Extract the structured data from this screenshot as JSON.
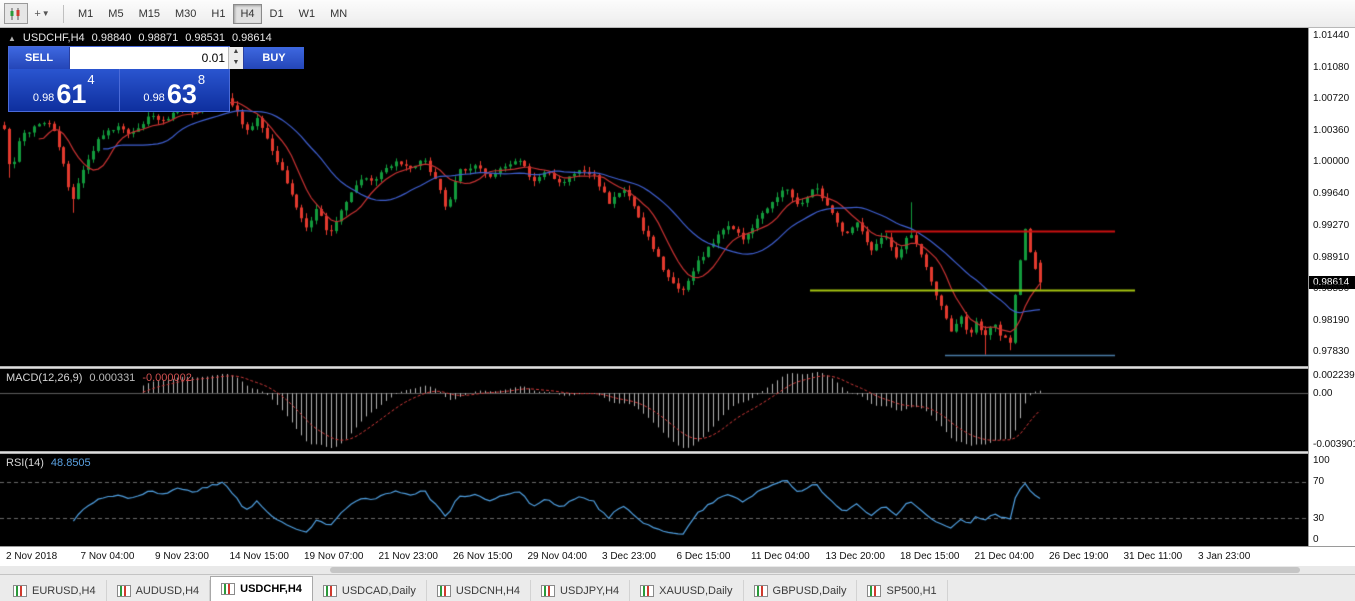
{
  "toolbar": {
    "timeframes": [
      {
        "label": "M1",
        "active": false
      },
      {
        "label": "M5",
        "active": false
      },
      {
        "label": "M15",
        "active": false
      },
      {
        "label": "M30",
        "active": false
      },
      {
        "label": "H1",
        "active": false
      },
      {
        "label": "H4",
        "active": true
      },
      {
        "label": "D1",
        "active": false
      },
      {
        "label": "W1",
        "active": false
      },
      {
        "label": "MN",
        "active": false
      }
    ]
  },
  "chart": {
    "header": {
      "symbol": "USDCHF,H4",
      "open": "0.98840",
      "high": "0.98871",
      "low": "0.98531",
      "close": "0.98614"
    },
    "trade_panel": {
      "sell_label": "SELL",
      "buy_label": "BUY",
      "volume": "0.01",
      "sell_price": {
        "base": "0.98",
        "big": "61",
        "pip": "4"
      },
      "buy_price": {
        "base": "0.98",
        "big": "63",
        "pip": "8"
      }
    },
    "price_axis_ticks": [
      "1.01440",
      "1.01080",
      "1.00720",
      "1.00360",
      "1.00000",
      "0.99640",
      "0.99270",
      "0.98910",
      "0.98550",
      "0.98190",
      "0.97830"
    ],
    "current_price": "0.98614"
  },
  "macd_panel": {
    "name": "MACD(12,26,9)",
    "value_main": "0.000331",
    "value_signal": "-0.000002",
    "axis_top": "0.0022390",
    "axis_zero": "0.00",
    "axis_bottom": "-0.0039010"
  },
  "rsi_panel": {
    "name": "RSI(14)",
    "value": "48.8505",
    "axis": [
      "100",
      "70",
      "30",
      "0"
    ]
  },
  "time_axis": [
    "2 Nov 2018",
    "7 Nov 04:00",
    "9 Nov 23:00",
    "14 Nov 15:00",
    "19 Nov 07:00",
    "21 Nov 23:00",
    "26 Nov 15:00",
    "29 Nov 04:00",
    "3 Dec 23:00",
    "6 Dec 15:00",
    "11 Dec 04:00",
    "13 Dec 20:00",
    "18 Dec 15:00",
    "21 Dec 04:00",
    "26 Dec 19:00",
    "31 Dec 11:00",
    "3 Jan 23:00"
  ],
  "tabs": [
    {
      "label": "EURUSD,H4",
      "active": false
    },
    {
      "label": "AUDUSD,H4",
      "active": false
    },
    {
      "label": "USDCHF,H4",
      "active": true
    },
    {
      "label": "USDCAD,Daily",
      "active": false
    },
    {
      "label": "USDCNH,H4",
      "active": false
    },
    {
      "label": "USDJPY,H4",
      "active": false
    },
    {
      "label": "XAUUSD,Daily",
      "active": false
    },
    {
      "label": "GBPUSD,Daily",
      "active": false
    },
    {
      "label": "SP500,H1",
      "active": false
    }
  ],
  "chart_data": {
    "type": "candlestick",
    "title": "USDCHF H4",
    "ohlc_current": {
      "open": 0.9884,
      "high": 0.98871,
      "low": 0.98531,
      "close": 0.98614
    },
    "y_ticks": [
      1.0144,
      1.0108,
      1.0072,
      1.0036,
      1.0,
      0.9964,
      0.9927,
      0.9891,
      0.9855,
      0.9819,
      0.9783
    ],
    "price_range": [
      0.9766,
      1.0152
    ],
    "bars": 210,
    "up_color": "#129a3c",
    "down_color": "#e23a2e",
    "close_path_anchors": [
      [
        0.0,
        1.0038
      ],
      [
        0.006,
        0.9985
      ],
      [
        0.016,
        1.0028
      ],
      [
        0.032,
        1.004
      ],
      [
        0.045,
        1.0044
      ],
      [
        0.056,
        1.0002
      ],
      [
        0.066,
        0.9952
      ],
      [
        0.078,
        0.9996
      ],
      [
        0.092,
        1.0026
      ],
      [
        0.108,
        1.004
      ],
      [
        0.122,
        1.003
      ],
      [
        0.14,
        1.0052
      ],
      [
        0.155,
        1.0044
      ],
      [
        0.17,
        1.0062
      ],
      [
        0.185,
        1.0055
      ],
      [
        0.2,
        1.007
      ],
      [
        0.213,
        1.0076
      ],
      [
        0.224,
        1.0058
      ],
      [
        0.234,
        1.0034
      ],
      [
        0.244,
        1.0048
      ],
      [
        0.257,
        1.0018
      ],
      [
        0.269,
        0.9984
      ],
      [
        0.281,
        0.995
      ],
      [
        0.292,
        0.9922
      ],
      [
        0.302,
        0.9946
      ],
      [
        0.314,
        0.9916
      ],
      [
        0.327,
        0.9946
      ],
      [
        0.341,
        0.9976
      ],
      [
        0.36,
        0.9982
      ],
      [
        0.377,
        1.0
      ],
      [
        0.391,
        0.999
      ],
      [
        0.404,
        1.0004
      ],
      [
        0.417,
        0.9978
      ],
      [
        0.427,
        0.9946
      ],
      [
        0.439,
        0.9988
      ],
      [
        0.454,
        0.9996
      ],
      [
        0.469,
        0.998
      ],
      [
        0.484,
        0.9996
      ],
      [
        0.499,
        1.0
      ],
      [
        0.511,
        0.9976
      ],
      [
        0.524,
        0.9988
      ],
      [
        0.539,
        0.9974
      ],
      [
        0.554,
        0.9992
      ],
      [
        0.569,
        0.9984
      ],
      [
        0.584,
        0.9952
      ],
      [
        0.599,
        0.9968
      ],
      [
        0.614,
        0.993
      ],
      [
        0.629,
        0.9896
      ],
      [
        0.643,
        0.9862
      ],
      [
        0.654,
        0.9852
      ],
      [
        0.669,
        0.9884
      ],
      [
        0.684,
        0.9908
      ],
      [
        0.699,
        0.9928
      ],
      [
        0.713,
        0.991
      ],
      [
        0.727,
        0.9932
      ],
      [
        0.741,
        0.995
      ],
      [
        0.754,
        0.9968
      ],
      [
        0.768,
        0.995
      ],
      [
        0.783,
        0.997
      ],
      [
        0.798,
        0.9942
      ],
      [
        0.811,
        0.9916
      ],
      [
        0.824,
        0.9932
      ],
      [
        0.837,
        0.9896
      ],
      [
        0.85,
        0.9918
      ],
      [
        0.862,
        0.989
      ],
      [
        0.874,
        0.992
      ],
      [
        0.884,
        0.9898
      ],
      [
        0.894,
        0.9866
      ],
      [
        0.904,
        0.9834
      ],
      [
        0.914,
        0.9806
      ],
      [
        0.923,
        0.9824
      ],
      [
        0.931,
        0.9802
      ],
      [
        0.939,
        0.9818
      ],
      [
        0.947,
        0.9798
      ],
      [
        0.955,
        0.982
      ],
      [
        0.963,
        0.98
      ],
      [
        0.971,
        0.9792
      ],
      [
        0.979,
        0.9876
      ],
      [
        0.986,
        0.9924
      ],
      [
        0.992,
        0.9886
      ],
      [
        1.0,
        0.98614
      ]
    ],
    "wick_events": [
      {
        "t": 0.006,
        "low": 0.9981
      },
      {
        "t": 0.066,
        "low": 0.9941
      },
      {
        "t": 0.213,
        "high": 1.0084
      },
      {
        "t": 0.874,
        "high": 0.9953
      },
      {
        "t": 0.947,
        "low": 0.9779
      },
      {
        "t": 0.971,
        "low": 0.9784
      }
    ],
    "overlays": [
      {
        "name": "ma-fast",
        "type": "sma",
        "period": 8,
        "color": "#c83232"
      },
      {
        "name": "ma-slow",
        "type": "sma",
        "period": 21,
        "color": "#3f5fd0"
      }
    ],
    "hlines": [
      {
        "price": 0.992,
        "color": "#cc1111",
        "width": 2,
        "x_from": 885,
        "x_to": 1115
      },
      {
        "price": 0.9853,
        "color": "#a6c510",
        "width": 2,
        "x_from": 810,
        "x_to": 1135
      },
      {
        "price": 0.9779,
        "color": "#4a7da8",
        "width": 1.5,
        "x_from": 945,
        "x_to": 1115
      }
    ],
    "indicators": [
      {
        "name": "MACD",
        "params": [
          12,
          26,
          9
        ],
        "current_main": 0.000331,
        "current_signal": -2e-06,
        "histogram_color": "#b2b2b2",
        "signal_color": "#d03a3a"
      },
      {
        "name": "RSI",
        "params": [
          14
        ],
        "current": 48.8505,
        "color": "#4f9fe0",
        "levels": [
          70,
          30
        ]
      }
    ]
  }
}
